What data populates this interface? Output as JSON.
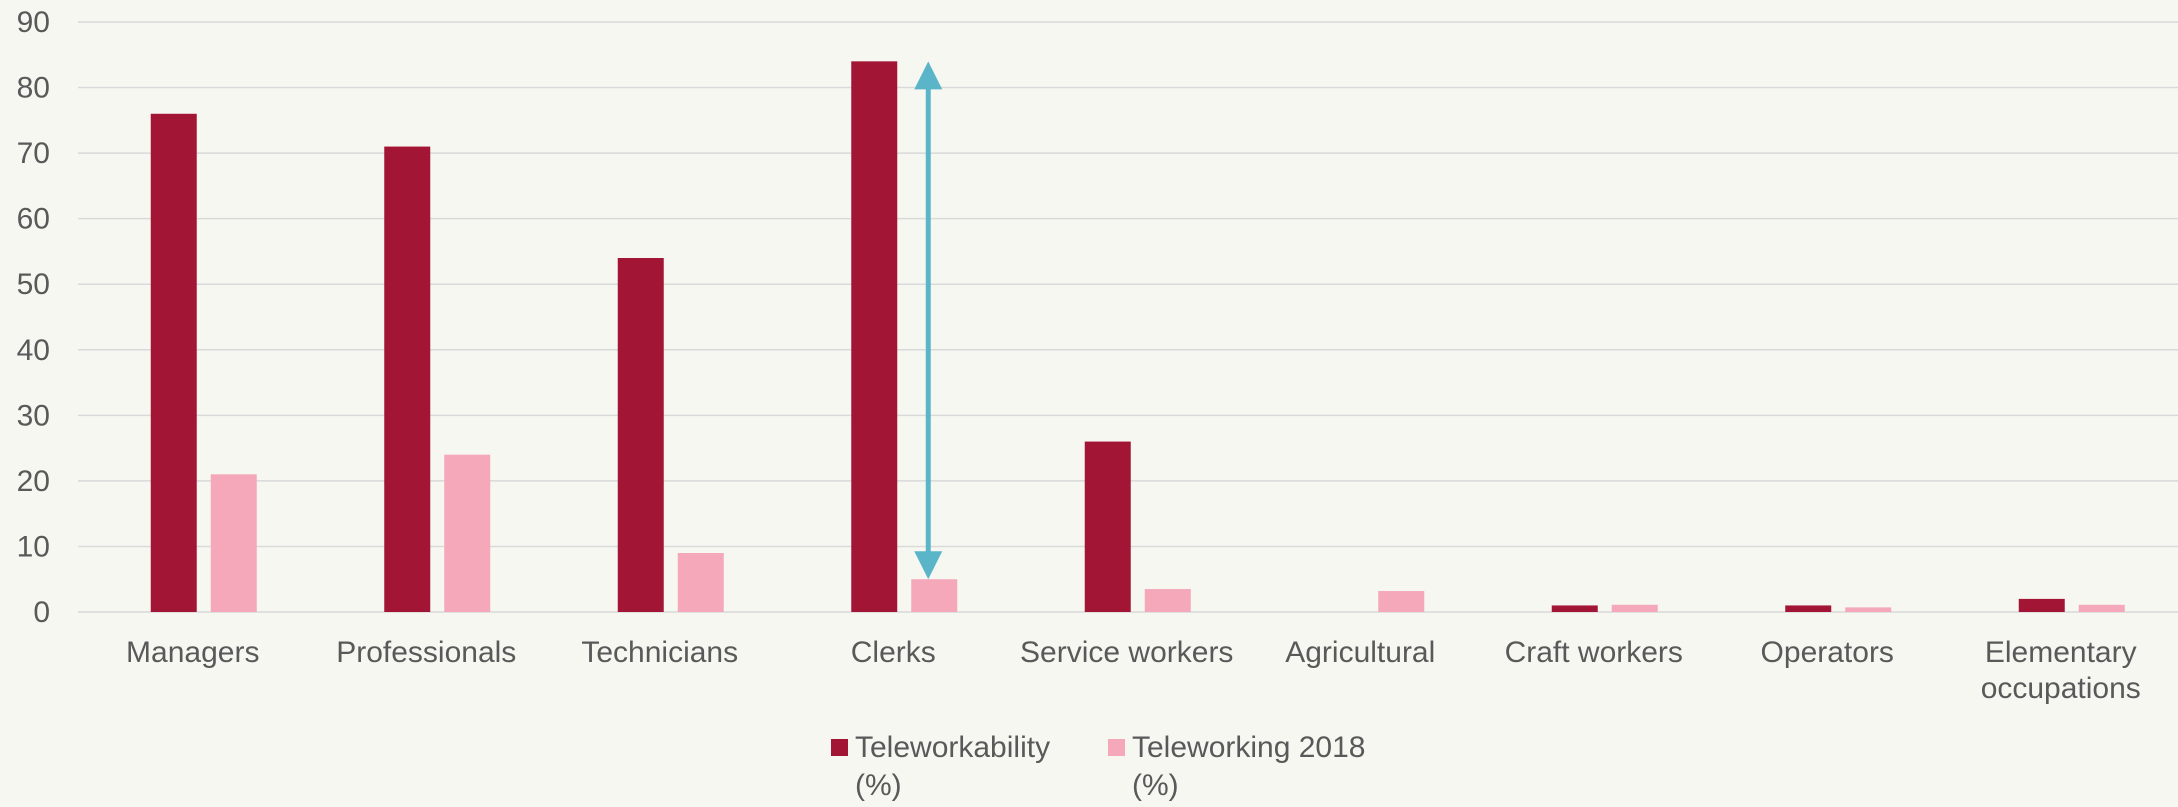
{
  "chart_data": {
    "type": "bar",
    "title": "",
    "xlabel": "",
    "ylabel": "",
    "ylim": [
      0,
      90
    ],
    "yticks": [
      0,
      10,
      20,
      30,
      40,
      50,
      60,
      70,
      80,
      90
    ],
    "grid": true,
    "legend_position": "bottom-center",
    "categories": [
      [
        "Managers"
      ],
      [
        "Professionals"
      ],
      [
        "Technicians"
      ],
      [
        "Clerks"
      ],
      [
        "Service workers"
      ],
      [
        "Agricultural"
      ],
      [
        "Craft workers"
      ],
      [
        "Operators"
      ],
      [
        "Elementary",
        "occupations"
      ]
    ],
    "series": [
      {
        "name": [
          "Teleworkability",
          "(%)"
        ],
        "color": "#a31535",
        "values": [
          76,
          71,
          54,
          84,
          26,
          0,
          1,
          1,
          2
        ]
      },
      {
        "name": [
          "Teleworking 2018",
          "(%)"
        ],
        "color": "#f4a8ba",
        "values": [
          21,
          24,
          9,
          5,
          3.5,
          3.2,
          1.1,
          0.7,
          1.1
        ]
      }
    ],
    "annotation": {
      "type": "double-arrow",
      "category_index": 3,
      "from_value": 5,
      "to_value": 84,
      "color": "#5ab5c8"
    },
    "colors": {
      "gridline": "#d9d9d9",
      "axis_text": "#595959"
    }
  }
}
